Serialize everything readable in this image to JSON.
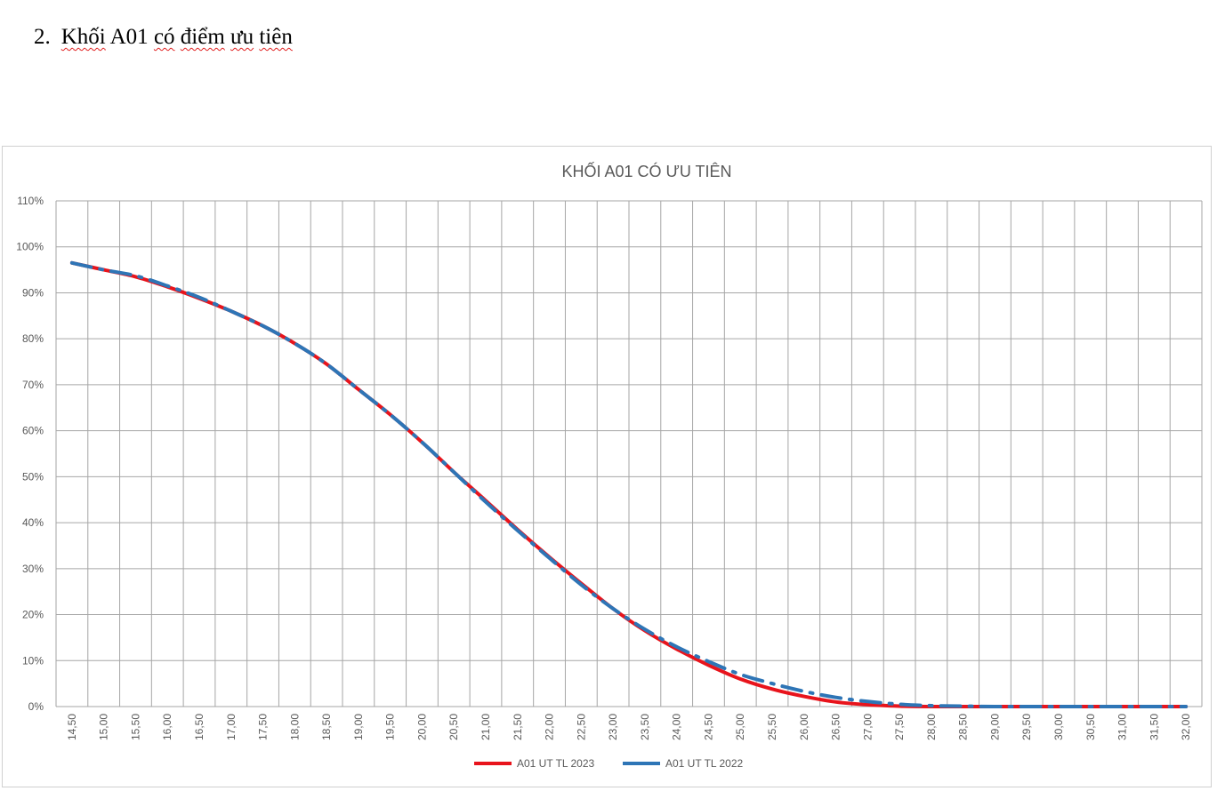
{
  "heading": {
    "number": "2.",
    "words": [
      "Khối",
      "A01",
      "có",
      "điểm",
      "ưu",
      "tiên"
    ],
    "squiggle": [
      true,
      false,
      true,
      true,
      true,
      true
    ]
  },
  "chart_data": {
    "type": "line",
    "title": "KHỐI A01 CÓ ƯU TIÊN",
    "xlabel": "",
    "ylabel": "",
    "x": [
      "14,50",
      "15,00",
      "15,50",
      "16,00",
      "16,50",
      "17,00",
      "17,50",
      "18,00",
      "18,50",
      "19,00",
      "19,50",
      "20,00",
      "20,50",
      "21,00",
      "21,50",
      "22,00",
      "22,50",
      "23,00",
      "23,50",
      "24,00",
      "24,50",
      "25,00",
      "25,50",
      "26,00",
      "26,50",
      "27,00",
      "27,50",
      "28,00",
      "28,50",
      "29,00",
      "29,50",
      "30,00",
      "30,50",
      "31,00",
      "31,50",
      "32,00"
    ],
    "ylim": [
      0,
      110
    ],
    "yticks": [
      "0%",
      "10%",
      "20%",
      "30%",
      "40%",
      "50%",
      "60%",
      "70%",
      "80%",
      "90%",
      "100%",
      "110%"
    ],
    "grid": true,
    "legend_position": "bottom",
    "series": [
      {
        "name": "A01 UT TL 2023",
        "color": "#e8141c",
        "style": "solid",
        "values": [
          96.5,
          95.0,
          93.5,
          91.3,
          88.8,
          86.0,
          82.8,
          79.0,
          74.5,
          69.0,
          63.5,
          57.5,
          51.0,
          44.8,
          38.5,
          32.5,
          26.8,
          21.3,
          16.5,
          12.5,
          9.0,
          6.0,
          3.8,
          2.2,
          1.0,
          0.4,
          0.1,
          0.0,
          0.0,
          0.0,
          0.0,
          0.0,
          0.0,
          0.0,
          0.0,
          0.0
        ]
      },
      {
        "name": "A01 UT TL 2022",
        "color": "#2e75b6",
        "style": "dashdot",
        "values": [
          96.5,
          95.0,
          93.7,
          91.5,
          89.0,
          86.0,
          82.8,
          79.0,
          74.5,
          69.0,
          63.5,
          57.5,
          51.0,
          44.5,
          38.3,
          32.3,
          26.5,
          21.3,
          16.8,
          13.0,
          9.8,
          7.0,
          5.0,
          3.3,
          2.0,
          1.1,
          0.5,
          0.2,
          0.1,
          0.0,
          0.0,
          0.0,
          0.0,
          0.0,
          0.0,
          0.0
        ]
      }
    ]
  }
}
